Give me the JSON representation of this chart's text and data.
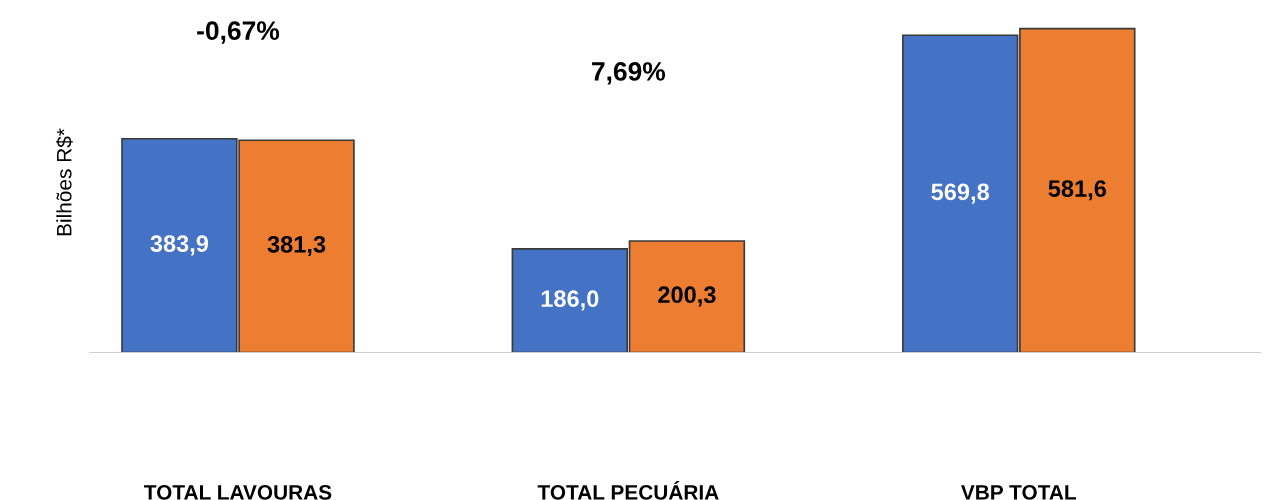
{
  "chart_data": {
    "type": "bar",
    "ylabel": "Bilhões R$*",
    "categories": [
      "TOTAL LAVOURAS",
      "TOTAL PECUÁRIA",
      "VBP TOTAL"
    ],
    "series": [
      {
        "color": "#4472c4",
        "values": [
          383.9,
          186.0,
          569.8
        ],
        "value_labels": [
          "383,9",
          "186,0",
          "569,8"
        ]
      },
      {
        "color": "#ed7d31",
        "values": [
          381.3,
          200.3,
          581.6
        ],
        "value_labels": [
          "381,3",
          "200,3",
          "581,6"
        ]
      }
    ],
    "annotations": [
      "-0,67%",
      "7,69%"
    ],
    "tick_labels": "x",
    "grid": false,
    "legend": false
  }
}
